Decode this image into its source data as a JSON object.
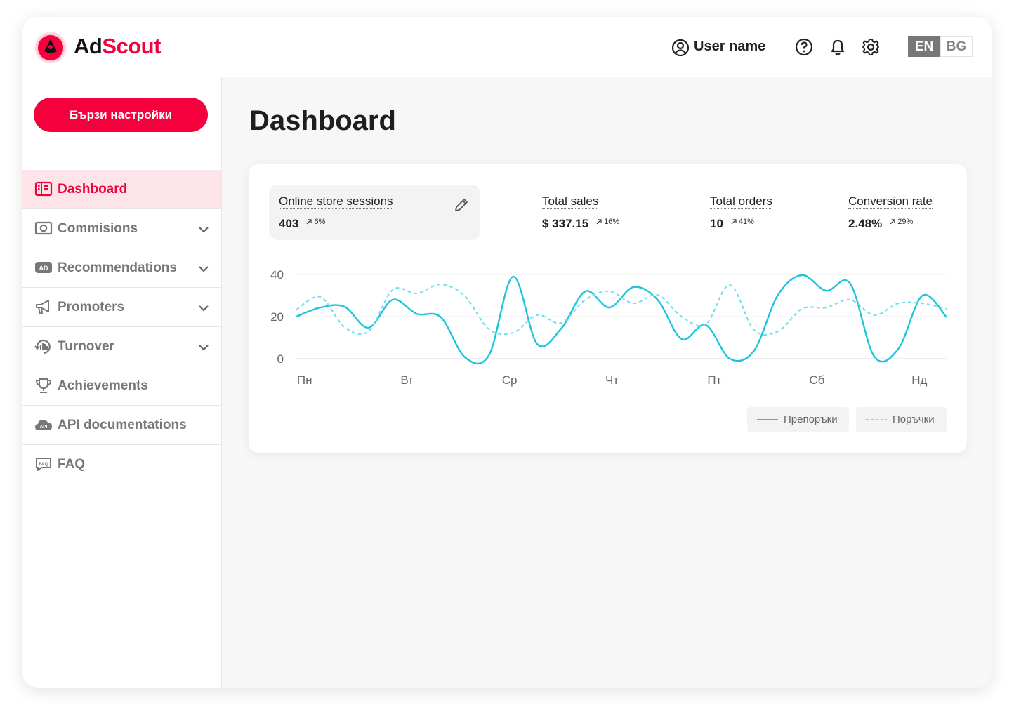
{
  "header": {
    "brand": [
      "Ad",
      "Scout"
    ],
    "user_name": "User name",
    "languages": [
      "EN",
      "BG"
    ],
    "active_language": 0
  },
  "sidebar": {
    "button": "Бързи настройки",
    "active": 0,
    "items": [
      {
        "label": "Dashboard"
      },
      {
        "label": "Commisions",
        "submenu": true
      },
      {
        "label": "Recommendations",
        "submenu": true,
        "badge": "AD"
      },
      {
        "label": "Promoters",
        "submenu": true
      },
      {
        "label": "Turnover",
        "submenu": true
      },
      {
        "label": "Achievements"
      },
      {
        "label": "API documentations",
        "badge": "API"
      },
      {
        "label": "FAQ",
        "badge": "FAQ"
      }
    ]
  },
  "main": {
    "title": "Dashboard",
    "metrics": [
      {
        "label": "Online store sessions",
        "value": "403",
        "change": "6%"
      },
      {
        "label": "Total sales",
        "value": "$ 337.15",
        "change": "16%"
      },
      {
        "label": "Total orders",
        "value": "10",
        "change": "41%"
      },
      {
        "label": "Conversion rate",
        "value": "2.48%",
        "change": "29%"
      }
    ]
  },
  "chart_data": {
    "type": "line",
    "x": [
      -0.08,
      0.155,
      0.39,
      0.625,
      0.86,
      1.095,
      1.33,
      1.565,
      1.8,
      2.035,
      2.27,
      2.505,
      2.74,
      2.975,
      3.21,
      3.445,
      3.68,
      3.915,
      4.15,
      4.385,
      4.62,
      4.855,
      5.09,
      5.325,
      5.56,
      5.795,
      6.03,
      6.265
    ],
    "series": [
      {
        "name": "Препоръки",
        "color": "#1ec4dc",
        "dashed": false,
        "values": [
          20,
          24.3,
          24.7,
          14.7,
          28,
          21.3,
          19.7,
          0.7,
          1.7,
          39,
          7,
          14.3,
          32,
          24.3,
          34,
          28,
          9.3,
          16,
          0,
          3.7,
          30.3,
          39.7,
          32.3,
          35.7,
          1,
          4.7,
          30,
          19.7
        ]
      },
      {
        "name": "Поръчки",
        "color": "#6fdfec",
        "dashed": true,
        "values": [
          23.3,
          29.3,
          15,
          13,
          32.7,
          31,
          35.3,
          29.7,
          14,
          12.3,
          20.7,
          17,
          28,
          32,
          26.3,
          30.3,
          20,
          16.3,
          35,
          13.7,
          13,
          23.7,
          24.3,
          28,
          20.7,
          26.3,
          26.3,
          23.7
        ]
      }
    ],
    "xlim": [
      -0.08,
      6.265
    ],
    "xticks": [
      {
        "value": 0,
        "label": "Пн"
      },
      {
        "value": 1,
        "label": "Вт"
      },
      {
        "value": 2,
        "label": "Ср"
      },
      {
        "value": 3,
        "label": "Чт"
      },
      {
        "value": 4,
        "label": "Пт"
      },
      {
        "value": 5,
        "label": "Сб"
      },
      {
        "value": 6,
        "label": "Нд"
      }
    ],
    "ylim": [
      0,
      40
    ],
    "yticks": [
      0,
      20,
      40
    ],
    "grid": true
  }
}
